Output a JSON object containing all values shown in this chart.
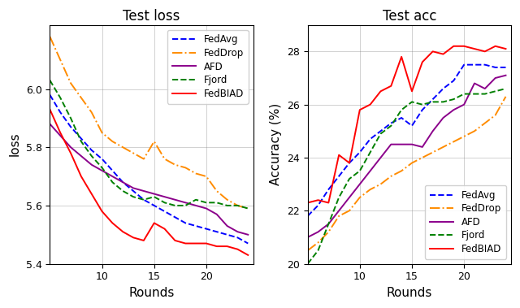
{
  "title_left": "Test loss",
  "title_right": "Test acc",
  "xlabel": "Rounds",
  "ylabel_left": "loss",
  "ylabel_right": "Accuracy (%)",
  "legend_labels": [
    "FedAvg",
    "FedDrop",
    "AFD",
    "Fjord",
    "FedBIAD"
  ],
  "colors": [
    "#0000ff",
    "#ff8c00",
    "#8b008b",
    "#008000",
    "#ff0000"
  ],
  "linestyles": [
    "--",
    "-.",
    "-",
    "--",
    "-"
  ],
  "rounds": [
    5,
    6,
    7,
    8,
    9,
    10,
    11,
    12,
    13,
    14,
    15,
    16,
    17,
    18,
    19,
    20,
    21,
    22,
    23,
    24
  ],
  "loss": {
    "FedAvg": [
      5.98,
      5.92,
      5.87,
      5.83,
      5.79,
      5.76,
      5.72,
      5.68,
      5.65,
      5.62,
      5.6,
      5.58,
      5.56,
      5.54,
      5.53,
      5.52,
      5.51,
      5.5,
      5.49,
      5.47
    ],
    "FedDrop": [
      6.18,
      6.1,
      6.02,
      5.97,
      5.92,
      5.85,
      5.82,
      5.8,
      5.78,
      5.76,
      5.82,
      5.76,
      5.74,
      5.73,
      5.71,
      5.7,
      5.65,
      5.62,
      5.6,
      5.59
    ],
    "AFD": [
      5.88,
      5.84,
      5.8,
      5.77,
      5.74,
      5.72,
      5.7,
      5.68,
      5.66,
      5.65,
      5.64,
      5.63,
      5.62,
      5.61,
      5.6,
      5.59,
      5.57,
      5.53,
      5.51,
      5.5
    ],
    "Fjord": [
      6.03,
      5.97,
      5.9,
      5.82,
      5.77,
      5.73,
      5.68,
      5.65,
      5.63,
      5.62,
      5.63,
      5.61,
      5.6,
      5.6,
      5.62,
      5.61,
      5.61,
      5.6,
      5.6,
      5.59
    ],
    "FedBIAD": [
      5.93,
      5.85,
      5.78,
      5.7,
      5.64,
      5.58,
      5.54,
      5.51,
      5.49,
      5.48,
      5.54,
      5.52,
      5.48,
      5.47,
      5.47,
      5.47,
      5.46,
      5.46,
      5.45,
      5.43
    ]
  },
  "acc": {
    "FedAvg": [
      21.8,
      22.2,
      22.8,
      23.3,
      23.8,
      24.2,
      24.7,
      25.0,
      25.3,
      25.5,
      25.2,
      25.8,
      26.2,
      26.6,
      26.9,
      27.5,
      27.5,
      27.5,
      27.4,
      27.4
    ],
    "FedDrop": [
      20.5,
      20.8,
      21.2,
      21.8,
      22.0,
      22.5,
      22.8,
      23.0,
      23.3,
      23.5,
      23.8,
      24.0,
      24.2,
      24.4,
      24.6,
      24.8,
      25.0,
      25.3,
      25.6,
      26.3
    ],
    "AFD": [
      21.0,
      21.2,
      21.5,
      22.0,
      22.5,
      23.0,
      23.5,
      24.0,
      24.5,
      24.5,
      24.5,
      24.4,
      25.0,
      25.5,
      25.8,
      26.0,
      26.8,
      26.6,
      27.0,
      27.1
    ],
    "Fjord": [
      20.0,
      20.5,
      21.5,
      22.5,
      23.2,
      23.5,
      24.2,
      24.9,
      25.2,
      25.8,
      26.1,
      26.0,
      26.1,
      26.1,
      26.2,
      26.4,
      26.4,
      26.4,
      26.5,
      26.6
    ],
    "FedBIAD": [
      22.3,
      22.4,
      22.3,
      24.1,
      23.8,
      25.8,
      26.0,
      26.5,
      26.7,
      27.8,
      26.5,
      27.6,
      28.0,
      27.9,
      28.2,
      28.2,
      28.1,
      28.0,
      28.2,
      28.1
    ]
  },
  "loss_ylim": [
    5.4,
    6.22
  ],
  "acc_ylim": [
    20.0,
    29.0
  ],
  "loss_yticks": [
    5.4,
    5.6,
    5.8,
    6.0
  ],
  "acc_yticks": [
    20,
    22,
    24,
    26,
    28
  ],
  "xlim_left": [
    5,
    24.5
  ],
  "xlim_right": [
    5,
    24.5
  ],
  "xticks": [
    10,
    15,
    20
  ],
  "background_color": "#ffffff"
}
